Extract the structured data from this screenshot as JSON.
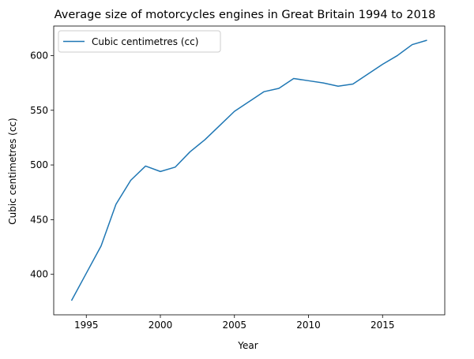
{
  "chart_data": {
    "type": "line",
    "title": "Average size of motorcycles engines in Great Britain 1994 to 2018",
    "xlabel": "Year",
    "ylabel": "Cubic centimetres (cc)",
    "xlim": [
      1992.8,
      2019.2
    ],
    "ylim": [
      363,
      627
    ],
    "xticks": [
      1995,
      2000,
      2005,
      2010,
      2015
    ],
    "yticks": [
      400,
      450,
      500,
      550,
      600
    ],
    "grid": false,
    "legend": "top-left",
    "x": [
      1994,
      1995,
      1996,
      1997,
      1998,
      1999,
      2000,
      2001,
      2002,
      2003,
      2004,
      2005,
      2006,
      2007,
      2008,
      2009,
      2010,
      2011,
      2012,
      2013,
      2014,
      2015,
      2016,
      2017,
      2018
    ],
    "series": [
      {
        "name": "Cubic centimetres (cc)",
        "color": "#1f77b4",
        "values": [
          376,
          401,
          426,
          464,
          486,
          499,
          494,
          498,
          512,
          523,
          536,
          549,
          558,
          567,
          570,
          579,
          577,
          575,
          572,
          574,
          583,
          592,
          600,
          610,
          614
        ]
      }
    ]
  }
}
